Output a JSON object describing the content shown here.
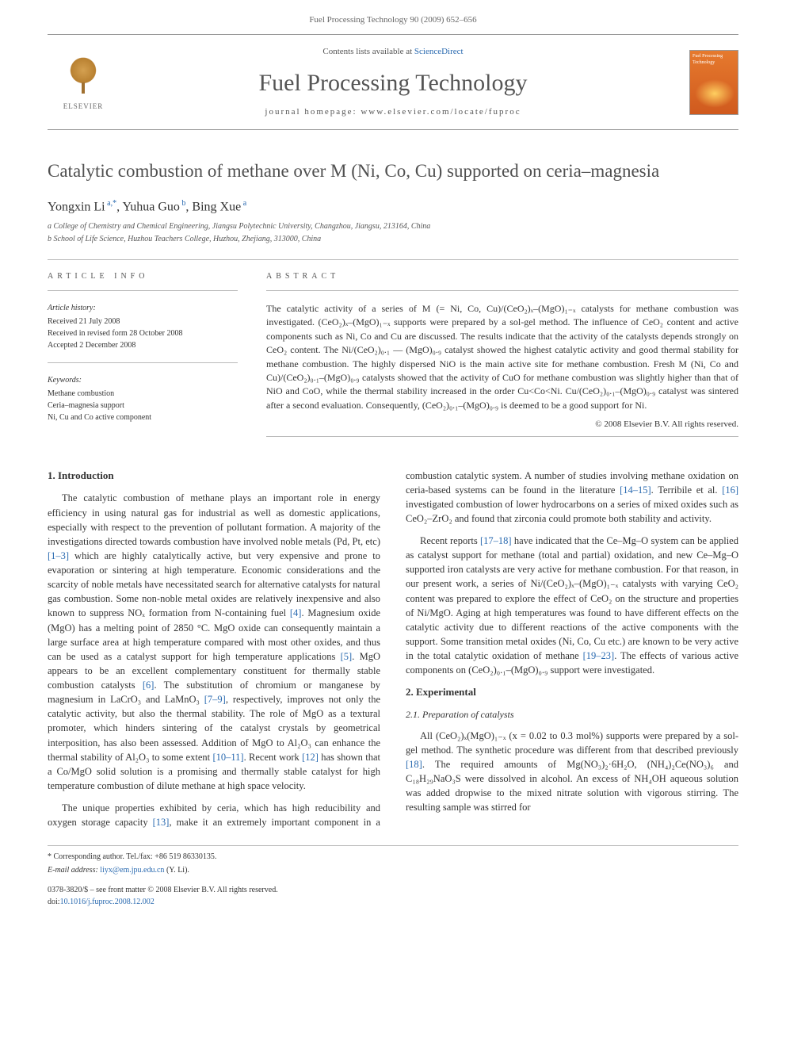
{
  "header": {
    "running_head": "Fuel Processing Technology 90 (2009) 652–656"
  },
  "banner": {
    "contents_prefix": "Contents lists available at ",
    "sciencedirect": "ScienceDirect",
    "journal_name": "Fuel Processing Technology",
    "homepage_label": "journal homepage: ",
    "homepage_url": "www.elsevier.com/locate/fuproc",
    "publisher": "ELSEVIER",
    "cover_label": "Fuel Processing Technology"
  },
  "article": {
    "title": "Catalytic combustion of methane over M (Ni, Co, Cu) supported on ceria–magnesia",
    "authors_html": "Yongxin Li <sup>a,*</sup>, Yuhua Guo <sup>b</sup>, Bing Xue <sup>a</sup>",
    "affiliations": [
      "a College of Chemistry and Chemical Engineering, Jiangsu Polytechnic University, Changzhou, Jiangsu, 213164, China",
      "b School of Life Science, Huzhou Teachers College, Huzhou, Zhejiang, 313000, China"
    ]
  },
  "info": {
    "heading": "ARTICLE INFO",
    "history_heading": "Article history:",
    "history": [
      "Received 21 July 2008",
      "Received in revised form 28 October 2008",
      "Accepted 2 December 2008"
    ],
    "keywords_heading": "Keywords:",
    "keywords": [
      "Methane combustion",
      "Ceria–magnesia support",
      "Ni, Cu and Co active component"
    ]
  },
  "abstract": {
    "heading": "ABSTRACT",
    "body": "The catalytic activity of a series of M (= Ni, Co, Cu)/(CeO₂)ₓ–(MgO)₁₋ₓ catalysts for methane combustion was investigated. (CeO₂)ₓ–(MgO)₁₋ₓ supports were prepared by a sol-gel method. The influence of CeO₂ content and active components such as Ni, Co and Cu are discussed. The results indicate that the activity of the catalysts depends strongly on CeO₂ content. The Ni/(CeO₂)₀.₁ — (MgO)₀.₉ catalyst showed the highest catalytic activity and good thermal stability for methane combustion. The highly dispersed NiO is the main active site for methane combustion. Fresh M (Ni, Co and Cu)/(CeO₂)₀.₁–(MgO)₀.₉ catalysts showed that the activity of CuO for methane combustion was slightly higher than that of NiO and CoO, while the thermal stability increased in the order Cu<Co<Ni. Cu/(CeO₂)₀.₁–(MgO)₀.₉ catalyst was sintered after a second evaluation. Consequently, (CeO₂)₀.₁–(MgO)₀.₉ is deemed to be a good support for Ni.",
    "copyright": "© 2008 Elsevier B.V. All rights reserved."
  },
  "sections": {
    "intro_heading": "1. Introduction",
    "intro_p1": "The catalytic combustion of methane plays an important role in energy efficiency in using natural gas for industrial as well as domestic applications, especially with respect to the prevention of pollutant formation. A majority of the investigations directed towards combustion have involved noble metals (Pd, Pt, etc) [1–3] which are highly catalytically active, but very expensive and prone to evaporation or sintering at high temperature. Economic considerations and the scarcity of noble metals have necessitated search for alternative catalysts for natural gas combustion. Some non-noble metal oxides are relatively inexpensive and also known to suppress NOₓ formation from N-containing fuel [4]. Magnesium oxide (MgO) has a melting point of 2850 °C. MgO oxide can consequently maintain a large surface area at high temperature compared with most other oxides, and thus can be used as a catalyst support for high temperature applications [5]. MgO appears to be an excellent complementary constituent for thermally stable combustion catalysts [6]. The substitution of chromium or manganese by magnesium in LaCrO₃ and LaMnO₃ [7–9], respectively, improves not only the catalytic activity, but also the thermal stability. The role of MgO as a textural promoter, which hinders sintering of the catalyst crystals by geometrical interposition, has also been assessed. Addition of MgO to Al₂O₃ can enhance the thermal stability of Al₂O₃ to some extent [10–11]. Recent work [12] has shown that a Co/MgO solid solution is a promising and thermally stable catalyst for high temperature combustion of dilute methane at high space velocity.",
    "intro_p2": "The unique properties exhibited by ceria, which has high reducibility and oxygen storage capacity [13], make it an extremely important component in a combustion catalytic system. A number of studies involving methane oxidation on ceria-based systems can be found in the literature [14–15]. Terribile et al. [16] investigated combustion of lower hydrocarbons on a series of mixed oxides such as CeO₂–ZrO₂ and found that zirconia could promote both stability and activity.",
    "intro_p3": "Recent reports [17–18] have indicated that the Ce–Mg–O system can be applied as catalyst support for methane (total and partial) oxidation, and new Ce–Mg–O supported iron catalysts are very active for methane combustion. For that reason, in our present work, a series of Ni/(CeO₂)ₓ–(MgO)₁₋ₓ catalysts with varying CeO₂ content was prepared to explore the effect of CeO₂ on the structure and properties of Ni/MgO. Aging at high temperatures was found to have different effects on the catalytic activity due to different reactions of the active components with the support. Some transition metal oxides (Ni, Co, Cu etc.) are known to be very active in the total catalytic oxidation of methane [19–23]. The effects of various active components on (CeO₂)₀.₁–(MgO)₀.₉ support were investigated.",
    "exp_heading": "2. Experimental",
    "exp_sub_heading": "2.1. Preparation of catalysts",
    "exp_p1": "All (CeO₂)ₓ(MgO)₁₋ₓ (x = 0.02 to 0.3 mol%) supports were prepared by a sol-gel method. The synthetic procedure was different from that described previously [18]. The required amounts of Mg(NO₃)₂·6H₂O, (NH₄)₂Ce(NO₃)₆ and C₁₈H₂₉NaO₃S were dissolved in alcohol. An excess of NH₄OH aqueous solution was added dropwise to the mixed nitrate solution with vigorous stirring. The resulting sample was stirred for"
  },
  "footer": {
    "corresponding": "* Corresponding author. Tel./fax: +86 519 86330135.",
    "email_label": "E-mail address: ",
    "email": "liyx@em.jpu.edu.cn",
    "email_name": " (Y. Li).",
    "issn_line": "0378-3820/$ – see front matter © 2008 Elsevier B.V. All rights reserved.",
    "doi_label": "doi:",
    "doi": "10.1016/j.fuproc.2008.12.002"
  },
  "colors": {
    "link": "#2a6ab0",
    "text": "#333333",
    "muted": "#666666",
    "rule": "#bbbbbb",
    "cover_bg_top": "#e67a2e",
    "cover_bg_bottom": "#d05a1e"
  }
}
